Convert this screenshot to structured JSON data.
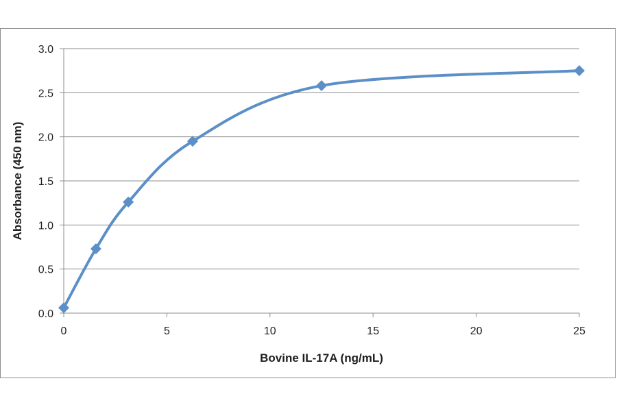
{
  "chart_data": {
    "type": "scatter",
    "title": "",
    "xlabel": "Bovine IL-17A  (ng/mL)",
    "ylabel": "Absorbance  (450 nm)",
    "xlim": [
      0,
      25
    ],
    "ylim": [
      0,
      3.0
    ],
    "xticks": [
      "0",
      "5",
      "10",
      "15",
      "20",
      "25"
    ],
    "yticks": [
      "0.0",
      "0.5",
      "1.0",
      "1.5",
      "2.0",
      "2.5",
      "3.0"
    ],
    "grid": "horizontal",
    "legend": "none",
    "smooth_line": true,
    "series": [
      {
        "x": [
          0,
          1.56,
          3.13,
          6.25,
          12.5,
          25
        ],
        "y": [
          0.06,
          0.73,
          1.26,
          1.95,
          2.58,
          2.75
        ],
        "marker": "diamond"
      }
    ],
    "colors": {
      "series": "#5b8fc7"
    }
  }
}
